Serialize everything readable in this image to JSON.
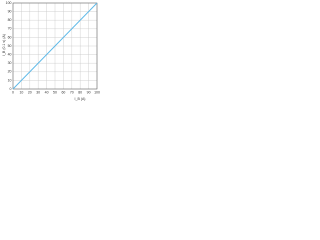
{
  "chart_data": {
    "type": "line",
    "x_label": "I_B (A)",
    "y_label": "I_B (0.1 s) (A)",
    "x": [
      0,
      100
    ],
    "series": [
      {
        "name": "I_B",
        "color": "#5bb8e8",
        "values": [
          0,
          100
        ]
      }
    ],
    "xlim": [
      0,
      100
    ],
    "xticks": [
      0,
      10,
      20,
      30,
      40,
      50,
      60,
      70,
      80,
      90,
      100
    ],
    "ylim": [
      0,
      100
    ],
    "yticks": [
      0,
      10,
      20,
      30,
      40,
      50,
      60,
      70,
      80,
      90,
      100
    ],
    "grid": true
  }
}
